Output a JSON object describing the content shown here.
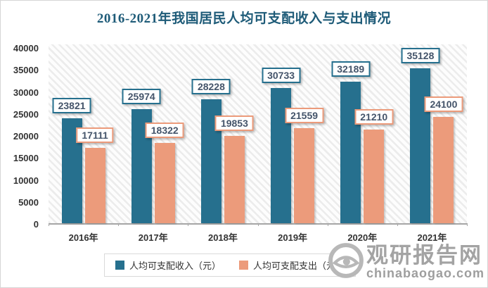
{
  "title": "2016-2021年我国居民人均可支配收入与支出情况",
  "chart_data": {
    "type": "bar",
    "title": "2016-2021年我国居民人均可支配收入与支出情况",
    "categories": [
      "2016年",
      "2017年",
      "2018年",
      "2019年",
      "2020年",
      "2021年"
    ],
    "series": [
      {
        "name": "人均可支配收入（元）",
        "color": "#26708E",
        "values": [
          23821,
          25974,
          28228,
          30733,
          32189,
          35128
        ]
      },
      {
        "name": "人均可支配支出（元）",
        "color": "#EC9B7B",
        "values": [
          17111,
          18322,
          19853,
          21559,
          21210,
          24100
        ]
      }
    ],
    "xlabel": "",
    "ylabel": "",
    "ylim": [
      0,
      40000
    ],
    "ytick_step": 5000,
    "grid": false,
    "legend_position": "bottom",
    "plot_background": "diagonal-hatch",
    "data_labels": true
  },
  "colors": {
    "title": "#1E5B78",
    "income_bar": "#26708E",
    "expense_bar": "#EC9B7B",
    "label_text": "#44546A",
    "axis_line": "#A6A6A6",
    "watermark": "#A3A3A3"
  },
  "watermark": {
    "name": "观研报告网",
    "domain": "chinabaogao.com"
  }
}
